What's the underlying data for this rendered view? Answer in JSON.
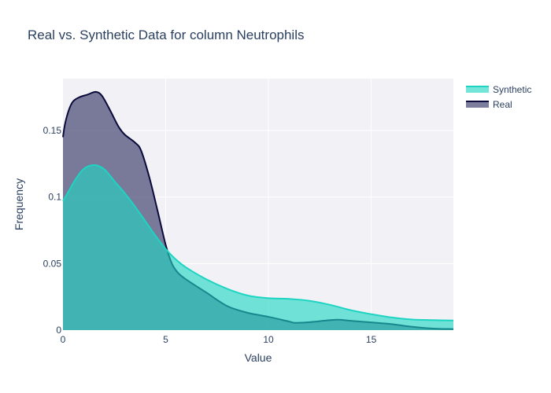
{
  "chart_data": {
    "type": "area",
    "title": "Real vs. Synthetic Data for column Neutrophils",
    "xlabel": "Value",
    "ylabel": "Frequency",
    "xlim": [
      0,
      19
    ],
    "ylim": [
      0,
      0.189
    ],
    "xticks": [
      {
        "value": 0,
        "label": "0"
      },
      {
        "value": 5,
        "label": "5"
      },
      {
        "value": 10,
        "label": "10"
      },
      {
        "value": 15,
        "label": "15"
      }
    ],
    "yticks": [
      {
        "value": 0,
        "label": "0"
      },
      {
        "value": 0.05,
        "label": "0.05"
      },
      {
        "value": 0.1,
        "label": "0.1"
      },
      {
        "value": 0.15,
        "label": "0.15"
      }
    ],
    "grid": true,
    "legend_position": "top-right",
    "series": [
      {
        "name": "Real",
        "color": "#0b0b3b",
        "fill": "rgba(70,70,115,0.70)",
        "points": [
          [
            0,
            0.145
          ],
          [
            0.1,
            0.155
          ],
          [
            0.3,
            0.166
          ],
          [
            0.5,
            0.172
          ],
          [
            0.8,
            0.175
          ],
          [
            1.2,
            0.177
          ],
          [
            1.6,
            0.179
          ],
          [
            1.9,
            0.176
          ],
          [
            2.3,
            0.165
          ],
          [
            2.7,
            0.153
          ],
          [
            3.0,
            0.147
          ],
          [
            3.5,
            0.141
          ],
          [
            3.8,
            0.135
          ],
          [
            4.2,
            0.115
          ],
          [
            4.6,
            0.09
          ],
          [
            5.0,
            0.064
          ],
          [
            5.3,
            0.05
          ],
          [
            5.6,
            0.043
          ],
          [
            6.0,
            0.038
          ],
          [
            7.0,
            0.028
          ],
          [
            8.0,
            0.018
          ],
          [
            9.0,
            0.013
          ],
          [
            10.0,
            0.01
          ],
          [
            11.0,
            0.0065
          ],
          [
            11.3,
            0.0055
          ],
          [
            12.0,
            0.006
          ],
          [
            13.3,
            0.0078
          ],
          [
            14.0,
            0.007
          ],
          [
            15.0,
            0.0058
          ],
          [
            16.0,
            0.0045
          ],
          [
            17.0,
            0.0025
          ],
          [
            18.0,
            0.0012
          ],
          [
            19.0,
            0.0008
          ]
        ]
      },
      {
        "name": "Synthetic",
        "color": "#1ed4c2",
        "fill": "rgba(30,214,194,0.62)",
        "points": [
          [
            0,
            0.097
          ],
          [
            0.3,
            0.105
          ],
          [
            0.6,
            0.113
          ],
          [
            1.0,
            0.121
          ],
          [
            1.5,
            0.124
          ],
          [
            2.0,
            0.121
          ],
          [
            2.5,
            0.112
          ],
          [
            3.0,
            0.103
          ],
          [
            3.5,
            0.093
          ],
          [
            4.0,
            0.082
          ],
          [
            4.5,
            0.071
          ],
          [
            5.0,
            0.061
          ],
          [
            5.5,
            0.053
          ],
          [
            6.0,
            0.047
          ],
          [
            7.0,
            0.038
          ],
          [
            8.0,
            0.031
          ],
          [
            9.0,
            0.026
          ],
          [
            10.0,
            0.024
          ],
          [
            11.0,
            0.0235
          ],
          [
            12.0,
            0.022
          ],
          [
            13.0,
            0.019
          ],
          [
            14.0,
            0.015
          ],
          [
            15.0,
            0.012
          ],
          [
            16.0,
            0.0095
          ],
          [
            17.0,
            0.008
          ],
          [
            18.0,
            0.0075
          ],
          [
            19.0,
            0.0072
          ]
        ]
      }
    ],
    "legend": [
      "Synthetic",
      "Real"
    ]
  }
}
